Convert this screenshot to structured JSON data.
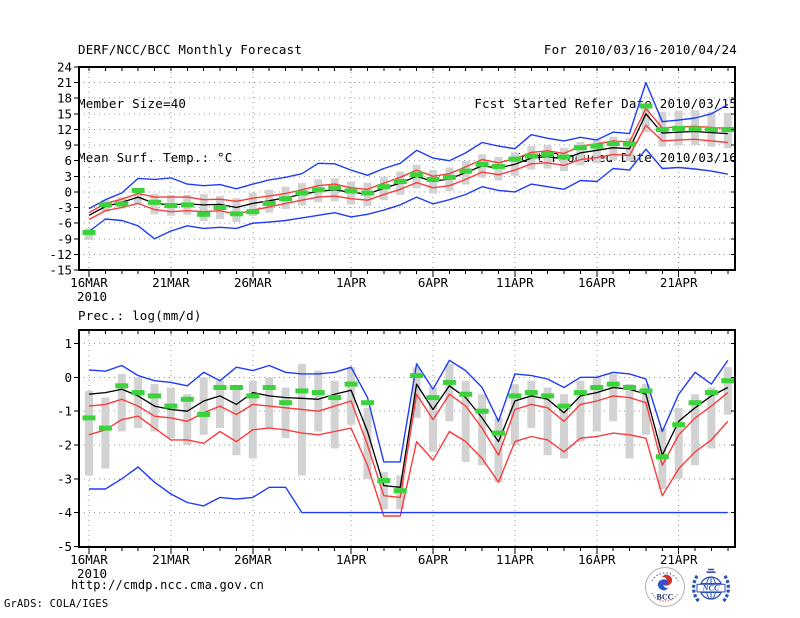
{
  "header": {
    "title": "DERF/NCC/BCC Monthly Forecast",
    "member_size": "Member Size=40",
    "temp_label": "Mean Surf. Temp.: °C",
    "for_range": "For 2010/03/16-2010/04/24",
    "refer_date": "Fcst Started Refer Date 2010/03/15",
    "produced_date": "Fcst Produced Date 2010/03/16"
  },
  "footer": {
    "url": "http://cmdp.ncc.cma.gov.cn",
    "grads_credit": "GrADS: COLA/IGES",
    "bcc_logo_text": "BCC",
    "ncc_logo_text": "NCC"
  },
  "colors": {
    "bound_line": "#1e3cfa",
    "quartile_line": "#fa3c3c",
    "mean_line": "#000000",
    "obs_marker": "#3cd23c",
    "spread_bar": "#d2d2d2",
    "grid": "#969696",
    "frame": "#000000",
    "ncc_blue": "#2a52b4",
    "bcc_red": "#d03030",
    "bcc_blue": "#2952cc",
    "bcc_navy": "#1a2e6e"
  },
  "chart_data": [
    {
      "name": "temperature",
      "type": "line",
      "title": "Mean Surf. Temp.: °C",
      "x_year_label": "2010",
      "n_days": 40,
      "x_ticks": {
        "days": [
          0,
          5,
          10,
          16,
          21,
          26,
          31,
          36
        ],
        "labels": [
          "16MAR",
          "21MAR",
          "26MAR",
          "1APR",
          "6APR",
          "11APR",
          "16APR",
          "21APR"
        ]
      },
      "yticks": {
        "max": 24,
        "min": -15,
        "step": 3
      },
      "ylim": [
        -15,
        24
      ],
      "grid": true,
      "series": [
        {
          "name": "ensemble-max",
          "color_key": "bound_line",
          "style": "line",
          "values": [
            -3.2,
            -1.5,
            -0.2,
            2.6,
            2.4,
            2.7,
            1.5,
            1.2,
            1.4,
            0.6,
            1.5,
            2.3,
            2.8,
            3.5,
            5.5,
            5.4,
            4.2,
            3.2,
            4.5,
            5.5,
            8.0,
            6.5,
            6.0,
            7.5,
            9.5,
            8.8,
            8.3,
            11.0,
            10.3,
            9.8,
            10.5,
            10.0,
            11.5,
            11.2,
            21.0,
            13.5,
            13.8,
            14.2,
            15.0,
            16.8
          ]
        },
        {
          "name": "upper-quartile",
          "color_key": "quartile_line",
          "style": "line",
          "values": [
            -4.0,
            -2.2,
            -1.4,
            -0.3,
            -1.0,
            -1.0,
            -1.0,
            -1.5,
            -1.4,
            -1.8,
            -1.2,
            -0.8,
            -0.3,
            0.4,
            1.2,
            1.5,
            0.8,
            0.5,
            1.7,
            2.8,
            4.2,
            3.0,
            3.5,
            4.8,
            6.2,
            5.6,
            6.4,
            7.6,
            7.9,
            7.4,
            8.8,
            9.2,
            9.8,
            9.6,
            16.0,
            12.3,
            12.5,
            12.6,
            12.4,
            12.2
          ]
        },
        {
          "name": "lower-quartile",
          "color_key": "quartile_line",
          "style": "line",
          "values": [
            -5.3,
            -3.6,
            -3.0,
            -2.2,
            -3.4,
            -3.8,
            -3.6,
            -3.8,
            -3.6,
            -4.3,
            -3.5,
            -2.9,
            -2.2,
            -1.6,
            -1.0,
            -0.8,
            -1.3,
            -1.6,
            -0.5,
            0.5,
            1.8,
            0.8,
            1.2,
            2.4,
            3.8,
            3.3,
            4.2,
            5.4,
            5.6,
            5.1,
            6.2,
            6.6,
            7.2,
            7.0,
            12.8,
            9.8,
            10.0,
            10.1,
            9.8,
            9.5
          ]
        },
        {
          "name": "ensemble-mean",
          "color_key": "mean_line",
          "style": "line",
          "values": [
            -4.5,
            -2.8,
            -2.0,
            -1.0,
            -2.2,
            -2.5,
            -2.3,
            -2.5,
            -2.4,
            -3.0,
            -2.2,
            -1.7,
            -1.1,
            -0.5,
            0.1,
            0.4,
            -0.1,
            -0.4,
            0.7,
            1.7,
            3.0,
            2.0,
            2.5,
            3.7,
            5.0,
            4.6,
            5.3,
            6.5,
            6.8,
            6.3,
            7.5,
            8.0,
            8.5,
            8.3,
            15.0,
            11.3,
            11.5,
            11.6,
            11.4,
            11.2
          ]
        },
        {
          "name": "ensemble-min",
          "color_key": "bound_line",
          "style": "line",
          "values": [
            -7.6,
            -5.2,
            -5.5,
            -6.5,
            -9.0,
            -7.5,
            -6.5,
            -7.0,
            -6.8,
            -7.0,
            -6.0,
            -5.8,
            -5.5,
            -5.0,
            -4.5,
            -4.0,
            -4.8,
            -4.3,
            -3.5,
            -2.5,
            -1.0,
            -2.3,
            -1.5,
            -0.5,
            1.0,
            0.3,
            0.0,
            1.5,
            1.0,
            0.5,
            2.2,
            2.0,
            4.5,
            4.2,
            8.2,
            4.5,
            4.7,
            4.4,
            4.0,
            3.4
          ]
        },
        {
          "name": "observation",
          "color_key": "obs_marker",
          "style": "dash-marker",
          "values": [
            -7.8,
            -2.5,
            -2.3,
            0.3,
            -2.0,
            -2.6,
            -2.5,
            -4.3,
            -3.0,
            -4.2,
            -3.8,
            -2.2,
            -1.3,
            -0.2,
            0.4,
            0.8,
            0.2,
            -0.2,
            1.0,
            2.0,
            3.3,
            2.4,
            2.8,
            4.0,
            5.3,
            4.9,
            6.3,
            6.9,
            7.2,
            6.7,
            8.5,
            8.8,
            9.3,
            9.2,
            16.5,
            12.0,
            12.2,
            12.1,
            12.0,
            12.0
          ]
        }
      ],
      "bars": [
        [
          -9.2,
          -7.0
        ],
        [
          -3.8,
          -1.6
        ],
        [
          -3.2,
          -1.0
        ],
        [
          -2.2,
          0.6
        ],
        [
          -4.3,
          -0.4
        ],
        [
          -4.6,
          -0.6
        ],
        [
          -4.4,
          -0.6
        ],
        [
          -5.6,
          -0.4
        ],
        [
          -5.2,
          -0.8
        ],
        [
          -5.8,
          -1.2
        ],
        [
          -4.6,
          -0.2
        ],
        [
          -4.0,
          0.4
        ],
        [
          -3.3,
          1.0
        ],
        [
          -2.6,
          1.7
        ],
        [
          -2.0,
          2.4
        ],
        [
          -1.8,
          2.6
        ],
        [
          -2.4,
          2.0
        ],
        [
          -2.7,
          1.8
        ],
        [
          -1.6,
          2.9
        ],
        [
          -0.6,
          3.9
        ],
        [
          0.7,
          5.2
        ],
        [
          -0.3,
          4.2
        ],
        [
          0.2,
          4.7
        ],
        [
          1.4,
          5.9
        ],
        [
          2.7,
          7.2
        ],
        [
          2.2,
          6.7
        ],
        [
          3.1,
          7.6
        ],
        [
          4.3,
          8.8
        ],
        [
          4.5,
          9.0
        ],
        [
          4.0,
          8.5
        ],
        [
          5.1,
          9.6
        ],
        [
          5.5,
          10.0
        ],
        [
          6.1,
          10.6
        ],
        [
          5.9,
          10.4
        ],
        [
          11.5,
          16.8
        ],
        [
          8.7,
          15.4
        ],
        [
          8.9,
          15.6
        ],
        [
          9.0,
          15.7
        ],
        [
          8.7,
          15.4
        ],
        [
          8.4,
          15.2
        ]
      ]
    },
    {
      "name": "precipitation",
      "type": "line",
      "title": "Prec.: log(mm/d)",
      "x_year_label": "2010",
      "n_days": 40,
      "x_ticks": {
        "days": [
          0,
          5,
          10,
          16,
          21,
          26,
          31,
          36
        ],
        "labels": [
          "16MAR",
          "21MAR",
          "26MAR",
          "1APR",
          "6APR",
          "11APR",
          "16APR",
          "21APR"
        ]
      },
      "yticks": {
        "max": 1,
        "min": -5,
        "step": 1
      },
      "ylim": [
        -5,
        1.4
      ],
      "grid": true,
      "series": [
        {
          "name": "ensemble-max",
          "color_key": "bound_line",
          "style": "line",
          "values": [
            0.22,
            0.18,
            0.35,
            0.05,
            -0.1,
            -0.15,
            -0.25,
            0.15,
            -0.1,
            0.3,
            0.2,
            0.35,
            0.15,
            0.1,
            0.1,
            0.15,
            0.3,
            -0.6,
            -2.5,
            -2.5,
            0.4,
            -0.35,
            0.5,
            0.2,
            -0.3,
            -1.3,
            0.1,
            0.05,
            -0.05,
            -0.3,
            0.0,
            0.0,
            0.15,
            0.1,
            -0.05,
            -1.6,
            -0.5,
            0.15,
            -0.2,
            0.5
          ]
        },
        {
          "name": "upper-quartile",
          "color_key": "quartile_line",
          "style": "line",
          "values": [
            -0.85,
            -0.8,
            -0.65,
            -0.85,
            -1.15,
            -1.2,
            -1.3,
            -1.05,
            -0.85,
            -1.1,
            -0.8,
            -0.85,
            -0.9,
            -0.95,
            -1.0,
            -0.85,
            -0.7,
            -2.0,
            -3.5,
            -3.55,
            -0.5,
            -1.25,
            -0.5,
            -0.85,
            -1.5,
            -2.3,
            -0.95,
            -0.8,
            -0.9,
            -1.3,
            -0.8,
            -0.7,
            -0.55,
            -0.6,
            -0.75,
            -2.6,
            -1.7,
            -1.2,
            -0.85,
            -0.45
          ]
        },
        {
          "name": "lower-quartile",
          "color_key": "quartile_line",
          "style": "line",
          "values": [
            -1.7,
            -1.55,
            -1.25,
            -1.15,
            -1.5,
            -1.85,
            -1.85,
            -1.95,
            -1.6,
            -1.9,
            -1.55,
            -1.5,
            -1.55,
            -1.65,
            -1.7,
            -1.6,
            -1.5,
            -2.6,
            -4.1,
            -4.1,
            -1.9,
            -2.45,
            -1.6,
            -1.9,
            -2.4,
            -3.1,
            -1.9,
            -1.75,
            -1.85,
            -2.2,
            -1.8,
            -1.75,
            -1.65,
            -1.7,
            -1.8,
            -3.5,
            -2.7,
            -2.2,
            -1.85,
            -1.3
          ]
        },
        {
          "name": "ensemble-mean",
          "color_key": "mean_line",
          "style": "line",
          "values": [
            -0.5,
            -0.45,
            -0.35,
            -0.55,
            -0.85,
            -0.95,
            -1.0,
            -0.7,
            -0.55,
            -0.8,
            -0.45,
            -0.55,
            -0.6,
            -0.62,
            -0.65,
            -0.5,
            -0.38,
            -1.6,
            -3.2,
            -3.25,
            -0.2,
            -0.95,
            -0.25,
            -0.6,
            -1.2,
            -1.9,
            -0.7,
            -0.55,
            -0.65,
            -1.05,
            -0.55,
            -0.45,
            -0.3,
            -0.35,
            -0.5,
            -2.3,
            -1.3,
            -0.9,
            -0.55,
            -0.3
          ]
        },
        {
          "name": "ensemble-min",
          "color_key": "bound_line",
          "style": "line",
          "values": [
            -3.3,
            -3.3,
            -3.0,
            -2.65,
            -3.1,
            -3.45,
            -3.7,
            -3.8,
            -3.55,
            -3.6,
            -3.55,
            -3.25,
            -3.25,
            -4.0,
            -4.0,
            -4.0,
            -4.0,
            -4.0,
            -4.0,
            -4.0,
            -4.0,
            -4.0,
            -4.0,
            -4.0,
            -4.0,
            -4.0,
            -4.0,
            -4.0,
            -4.0,
            -4.0,
            -4.0,
            -4.0,
            -4.0,
            -4.0,
            -4.0,
            -4.0,
            -4.0,
            -4.0,
            -4.0,
            -4.0
          ]
        },
        {
          "name": "observation",
          "color_key": "obs_marker",
          "style": "dash-marker",
          "values": [
            -1.2,
            -1.5,
            -0.25,
            -0.45,
            -0.55,
            -0.85,
            -0.65,
            -1.1,
            -0.3,
            -0.3,
            -0.55,
            -0.3,
            -0.75,
            -0.4,
            -0.45,
            -0.6,
            -0.2,
            -0.75,
            -3.05,
            -3.35,
            0.05,
            -0.6,
            -0.15,
            -0.5,
            -1.0,
            -1.65,
            -0.55,
            -0.45,
            -0.55,
            -0.85,
            -0.45,
            -0.3,
            -0.2,
            -0.3,
            -0.4,
            -2.35,
            -1.4,
            -0.75,
            -0.45,
            -0.1
          ]
        }
      ],
      "bars": [
        [
          -2.9,
          -0.4
        ],
        [
          -2.7,
          -0.6
        ],
        [
          -1.6,
          0.1
        ],
        [
          -1.5,
          0.0
        ],
        [
          -1.6,
          -0.2
        ],
        [
          -1.8,
          -0.3
        ],
        [
          -2.0,
          -0.5
        ],
        [
          -1.7,
          0.0
        ],
        [
          -1.5,
          -0.1
        ],
        [
          -2.3,
          -0.3
        ],
        [
          -2.4,
          -0.1
        ],
        [
          -1.5,
          0.0
        ],
        [
          -1.8,
          -0.3
        ],
        [
          -2.9,
          0.4
        ],
        [
          -1.6,
          0.2
        ],
        [
          -2.1,
          -0.1
        ],
        [
          -1.4,
          0.3
        ],
        [
          -3.0,
          -0.9
        ],
        [
          -3.9,
          -2.8
        ],
        [
          -3.9,
          -2.9
        ],
        [
          -1.2,
          0.3
        ],
        [
          -2.2,
          -0.3
        ],
        [
          -1.3,
          0.4
        ],
        [
          -2.5,
          -0.1
        ],
        [
          -2.6,
          -0.5
        ],
        [
          -3.1,
          -1.2
        ],
        [
          -2.0,
          -0.2
        ],
        [
          -1.5,
          -0.1
        ],
        [
          -2.3,
          -0.3
        ],
        [
          -2.4,
          -0.5
        ],
        [
          -1.9,
          -0.1
        ],
        [
          -1.6,
          0.0
        ],
        [
          -1.3,
          0.1
        ],
        [
          -2.4,
          -0.2
        ],
        [
          -1.7,
          -0.2
        ],
        [
          -3.3,
          -1.5
        ],
        [
          -3.0,
          -0.9
        ],
        [
          -2.6,
          -0.5
        ],
        [
          -2.1,
          -0.3
        ],
        [
          -1.1,
          0.3
        ]
      ]
    }
  ]
}
